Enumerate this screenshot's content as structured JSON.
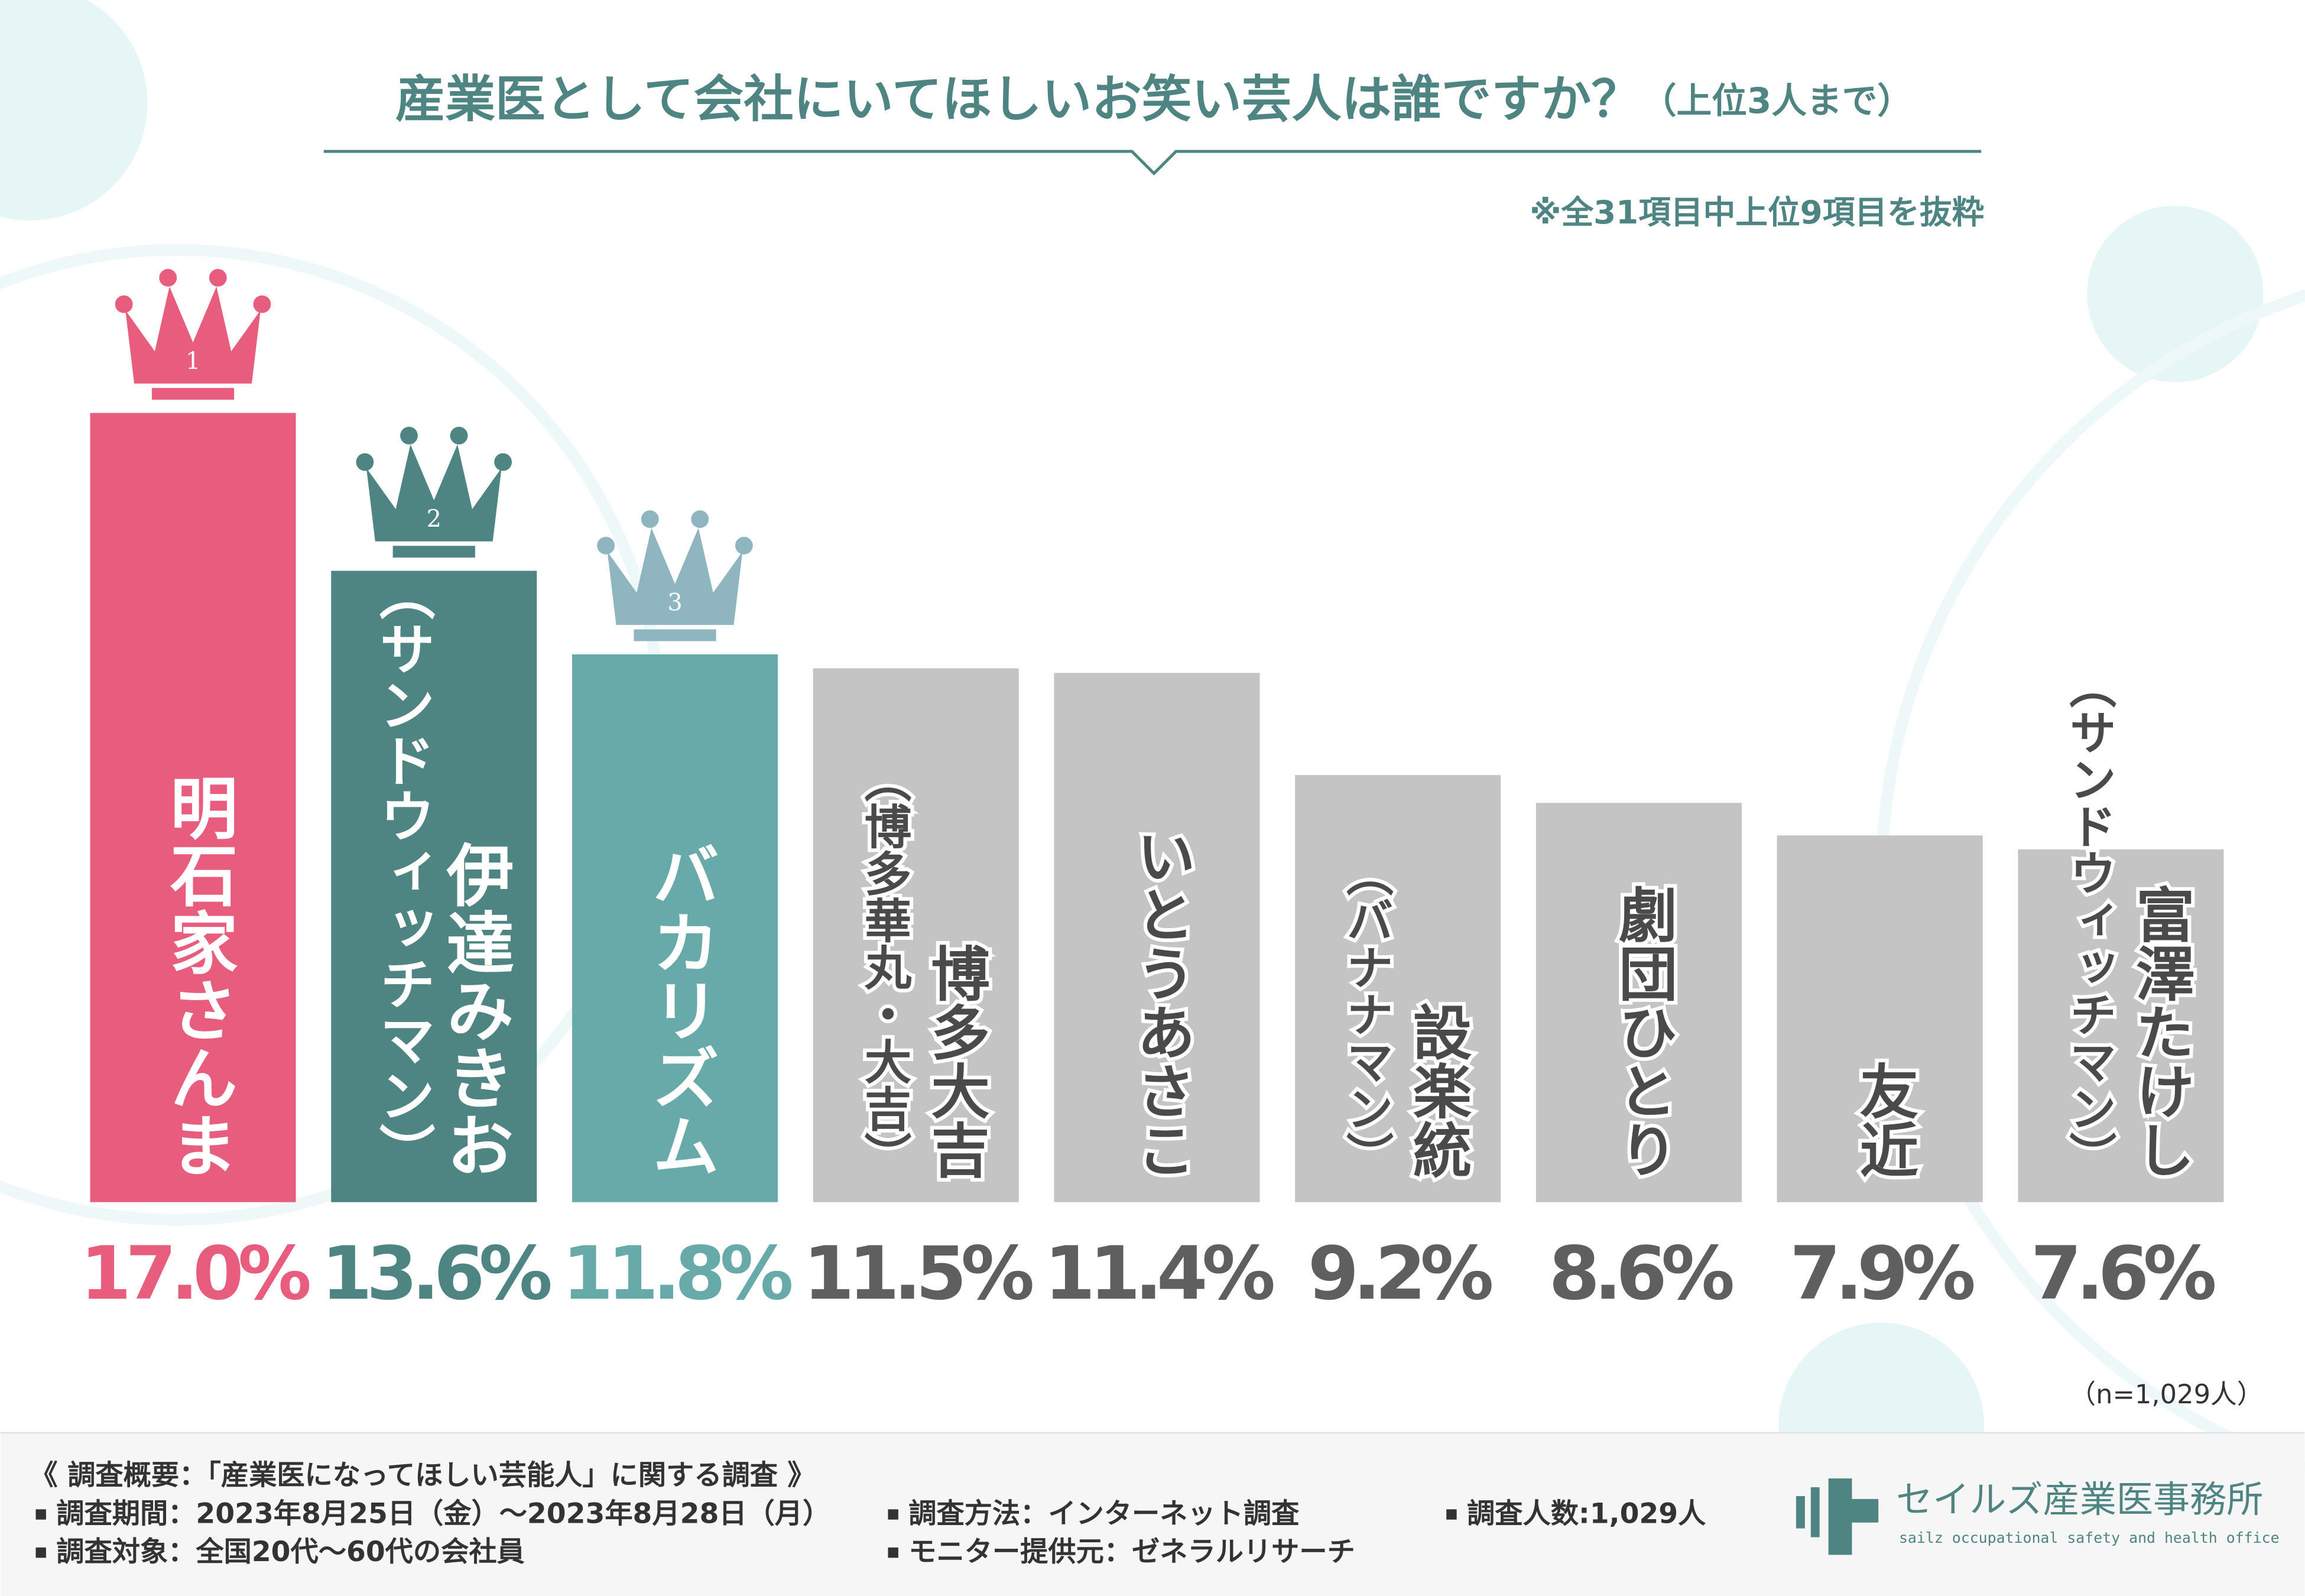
{
  "chart_data": {
    "type": "bar",
    "title": "産業医として会社にいてほしいお笑い芸人は誰ですか？",
    "title_suffix": "（上位3人まで）",
    "subtitle": "※全31項目中上位9項目を抜粋",
    "categories": [
      "明石家さんま",
      "伊達みきお",
      "バカリズム",
      "博多大吉",
      "いとうあさこ",
      "設楽統",
      "劇団ひとり",
      "友近",
      "富澤たけし"
    ],
    "category_notes": [
      null,
      "（サンドウィッチマン）",
      null,
      "（博多華丸・大吉）",
      null,
      "（バナナマン）",
      null,
      null,
      "（サンドウィッチマン）"
    ],
    "values": [
      17.0,
      13.6,
      11.8,
      11.5,
      11.4,
      9.2,
      8.6,
      7.9,
      7.6
    ],
    "value_labels": [
      "17.0%",
      "13.6%",
      "11.8%",
      "11.5%",
      "11.4%",
      "9.2%",
      "8.6%",
      "7.9%",
      "7.6%"
    ],
    "colors": [
      "#e85d7e",
      "#4e8583",
      "#68a9a9",
      "#c4c4c4",
      "#c4c4c4",
      "#c4c4c4",
      "#c4c4c4",
      "#c4c4c4",
      "#c4c4c4"
    ],
    "label_colors": [
      "#e85d7e",
      "#4e8583",
      "#68a9a9",
      "#5f5f5f",
      "#5f5f5f",
      "#5f5f5f",
      "#5f5f5f",
      "#5f5f5f",
      "#5f5f5f"
    ],
    "rank_labels": [
      "1",
      "2",
      "3"
    ],
    "rank_colors": [
      "#e85d7e",
      "#4e8583",
      "#8fb5c0"
    ],
    "sample_note": "（n=1,029人）"
  },
  "footer": {
    "heading": "《 調査概要：「産業医になってほしい芸能人」に関する調査 》",
    "items": [
      "調査期間：2023年8月25日（金）～2023年8月28日（月）",
      "調査対象：全国20代～60代の会社員",
      "調査方法：インターネット調査",
      "モニター提供元：ゼネラルリサーチ",
      "調査人数:1,029人"
    ],
    "logo_name": "セイルズ産業医事務所",
    "logo_sub": "sailz occupational safety and health office"
  }
}
